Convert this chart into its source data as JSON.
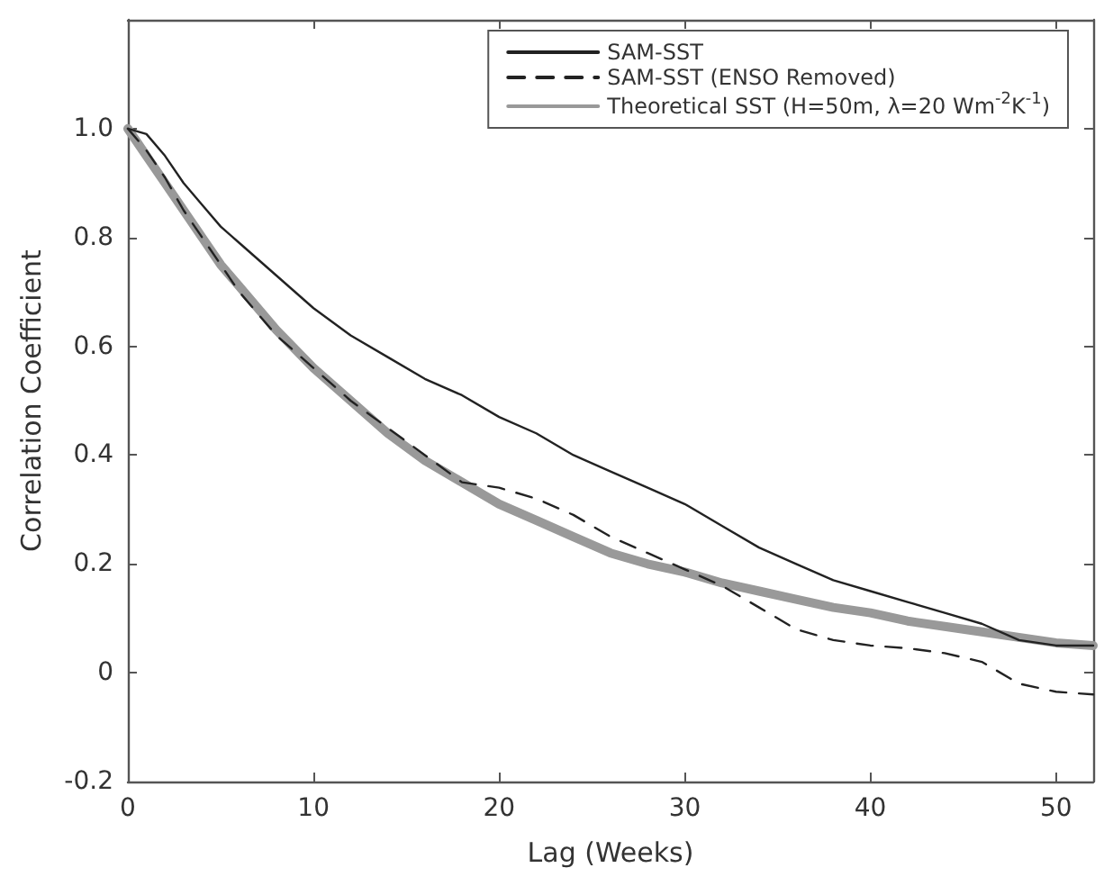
{
  "chart_data": {
    "type": "line",
    "xlabel": "Lag (Weeks)",
    "ylabel": "Correlation Coefficient",
    "x": [
      0,
      1,
      2,
      3,
      4,
      5,
      6,
      8,
      10,
      12,
      14,
      16,
      18,
      20,
      22,
      24,
      26,
      28,
      30,
      32,
      34,
      36,
      38,
      40,
      42,
      44,
      46,
      48,
      50,
      52
    ],
    "series": [
      {
        "name": "SAM-SST",
        "color": "#222222",
        "line_style": "solid",
        "values": [
          1.0,
          0.99,
          0.95,
          0.9,
          0.86,
          0.82,
          0.79,
          0.73,
          0.67,
          0.62,
          0.58,
          0.54,
          0.51,
          0.47,
          0.44,
          0.4,
          0.37,
          0.34,
          0.31,
          0.27,
          0.23,
          0.2,
          0.17,
          0.15,
          0.13,
          0.11,
          0.09,
          0.06,
          0.05,
          0.05
        ]
      },
      {
        "name": "SAM-SST (ENSO Removed)",
        "color": "#222222",
        "line_style": "dashed",
        "values": [
          1.0,
          0.96,
          0.91,
          0.85,
          0.8,
          0.75,
          0.7,
          0.62,
          0.56,
          0.5,
          0.45,
          0.4,
          0.35,
          0.34,
          0.32,
          0.29,
          0.25,
          0.22,
          0.19,
          0.16,
          0.12,
          0.08,
          0.06,
          0.05,
          0.045,
          0.036,
          0.02,
          -0.02,
          -0.035,
          -0.04
        ]
      },
      {
        "name": "Theoretical SST (H=50m, λ=20 Wm$^{-2}$K$^{-1}$)",
        "color": "#999999",
        "line_style": "solid",
        "values": [
          1.0,
          0.95,
          0.9,
          0.85,
          0.8,
          0.75,
          0.71,
          0.63,
          0.56,
          0.5,
          0.44,
          0.39,
          0.35,
          0.31,
          0.28,
          0.25,
          0.22,
          0.2,
          0.185,
          0.165,
          0.15,
          0.135,
          0.12,
          0.11,
          0.095,
          0.085,
          0.075,
          0.065,
          0.055,
          0.05
        ]
      }
    ],
    "xlim": [
      0,
      52
    ],
    "xticks": [
      0,
      10,
      20,
      30,
      40,
      50
    ],
    "ylim": [
      -0.2,
      1.2
    ],
    "yticks": [
      -0.2,
      0,
      0.2,
      0.4,
      0.6,
      {
        "value": 0.8,
        "label": "0.8"
      },
      {
        "value": 1,
        "label": "1.0"
      }
    ],
    "legend": "top right",
    "grid": false,
    "marker": "none"
  }
}
